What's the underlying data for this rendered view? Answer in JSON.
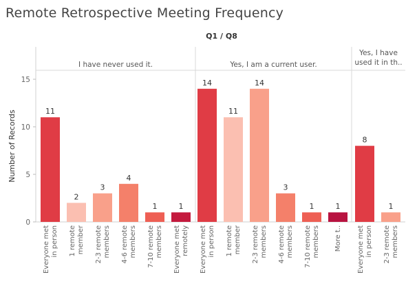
{
  "chart_data": {
    "type": "bar",
    "title": "Remote Retrospective Meeting Frequency",
    "column_header": "Q1 / Q8",
    "ylabel": "Number of Records",
    "ylim": [
      0,
      16
    ],
    "yticks": [
      0,
      5,
      10,
      15
    ],
    "grid": false,
    "panels": [
      {
        "name": "I have never used it.",
        "bars": [
          {
            "category": [
              "Everyone met",
              "in person"
            ],
            "value": 11,
            "color": "#e03c45"
          },
          {
            "category": [
              "1 remote",
              "member"
            ],
            "value": 2,
            "color": "#fbbfb1"
          },
          {
            "category": [
              "2-3 remote",
              "members"
            ],
            "value": 3,
            "color": "#f9a08a"
          },
          {
            "category": [
              "4-6 remote",
              "members"
            ],
            "value": 4,
            "color": "#f4806a"
          },
          {
            "category": [
              "7-10 remote",
              "members"
            ],
            "value": 1,
            "color": "#ee5f54"
          },
          {
            "category": [
              "Everyone met",
              "remotely"
            ],
            "value": 1,
            "color": "#c41a3e"
          }
        ]
      },
      {
        "name": "Yes, I am a current user.",
        "bars": [
          {
            "category": [
              "Everyone met",
              "in person"
            ],
            "value": 14,
            "color": "#e03c45"
          },
          {
            "category": [
              "1 remote",
              "member"
            ],
            "value": 11,
            "color": "#fbbfb1"
          },
          {
            "category": [
              "2-3 remote",
              "members"
            ],
            "value": 14,
            "color": "#f9a08a"
          },
          {
            "category": [
              "4-6 remote",
              "members"
            ],
            "value": 3,
            "color": "#f4806a"
          },
          {
            "category": [
              "7-10 remote",
              "members"
            ],
            "value": 1,
            "color": "#ee5f54"
          },
          {
            "category": [
              "More t.."
            ],
            "value": 1,
            "color": "#b81340"
          }
        ]
      },
      {
        "name": [
          "Yes, I have",
          "used it in th.."
        ],
        "bars": [
          {
            "category": [
              "Everyone met",
              "in person"
            ],
            "value": 8,
            "color": "#e03c45"
          },
          {
            "category": [
              "2-3 remote",
              "members"
            ],
            "value": 1,
            "color": "#f9a08a"
          }
        ]
      }
    ]
  }
}
